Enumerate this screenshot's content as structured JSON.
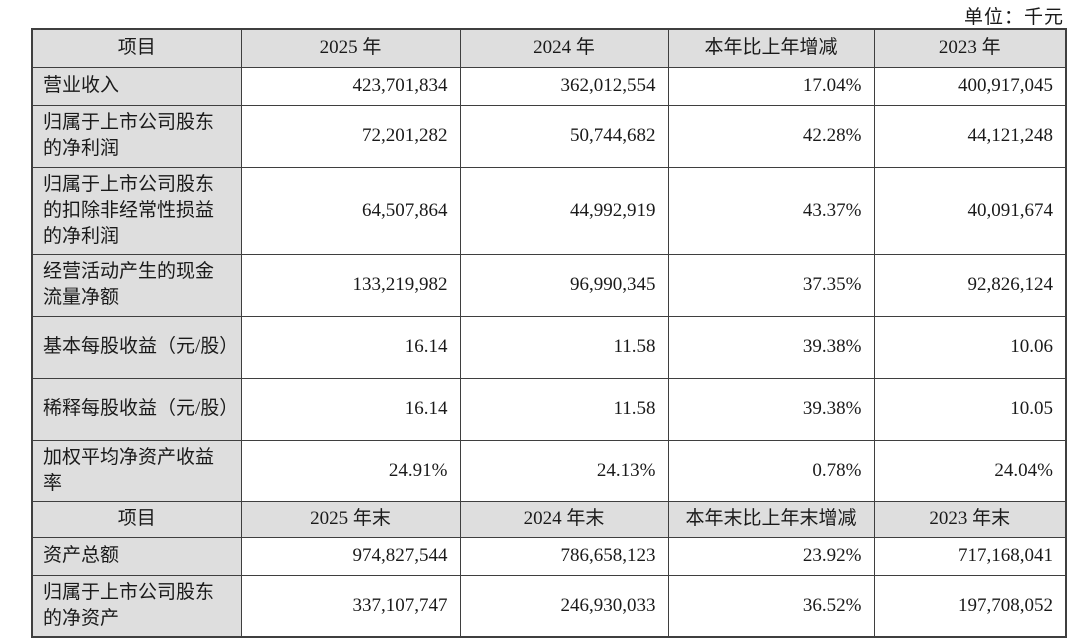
{
  "page": {
    "unit_label": "单位：千元"
  },
  "colors": {
    "header_bg": "#dedede",
    "label_column_bg": "#dedede",
    "border": "#3f3f3f",
    "text": "#1a1a1a",
    "page_bg": "#ffffff"
  },
  "table": {
    "sections": [
      {
        "header": {
          "cells": [
            "项目",
            "2025 年",
            "2024 年",
            "本年比上年增减",
            "2023 年"
          ]
        },
        "rows": [
          {
            "label": "营业收入",
            "values": [
              "423,701,834",
              "362,012,554",
              "17.04%",
              "400,917,045"
            ]
          },
          {
            "label": "归属于上市公司股东的净利润",
            "values": [
              "72,201,282",
              "50,744,682",
              "42.28%",
              "44,121,248"
            ]
          },
          {
            "label": "归属于上市公司股东的扣除非经常性损益的净利润",
            "values": [
              "64,507,864",
              "44,992,919",
              "43.37%",
              "40,091,674"
            ]
          },
          {
            "label": "经营活动产生的现金流量净额",
            "values": [
              "133,219,982",
              "96,990,345",
              "37.35%",
              "92,826,124"
            ]
          },
          {
            "label": "基本每股收益（元/股）",
            "values": [
              "16.14",
              "11.58",
              "39.38%",
              "10.06"
            ]
          },
          {
            "label": "稀释每股收益（元/股）",
            "values": [
              "16.14",
              "11.58",
              "39.38%",
              "10.05"
            ]
          },
          {
            "label": "加权平均净资产收益率",
            "values": [
              "24.91%",
              "24.13%",
              "0.78%",
              "24.04%"
            ]
          }
        ]
      },
      {
        "header": {
          "cells": [
            "项目",
            "2025 年末",
            "2024 年末",
            "本年末比上年末增减",
            "2023 年末"
          ]
        },
        "rows": [
          {
            "label": "资产总额",
            "values": [
              "974,827,544",
              "786,658,123",
              "23.92%",
              "717,168,041"
            ]
          },
          {
            "label": "归属于上市公司股东的净资产",
            "values": [
              "337,107,747",
              "246,930,033",
              "36.52%",
              "197,708,052"
            ]
          }
        ]
      }
    ]
  }
}
